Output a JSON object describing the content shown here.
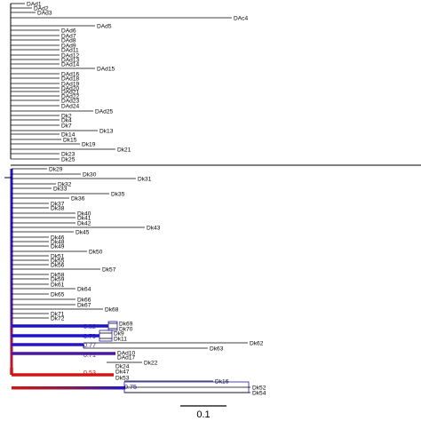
{
  "tree": {
    "line_color": "#000000",
    "gradient_colors": [
      "#1f14c8",
      "#4a1a9e",
      "#8a1a4a",
      "#d01515"
    ],
    "top_clade_tips": [
      "DAd1",
      "DAd2",
      "DAd3",
      "DAc4",
      "DAd5",
      "DAd6",
      "DAd7",
      "DAd8",
      "DAd9",
      "DAd11",
      "DAd12",
      "DAd13",
      "DAd14",
      "DAd15",
      "DAd16",
      "DAd18",
      "DAd19",
      "DAd20",
      "DAd21",
      "DAd22",
      "DAd23",
      "DAd24",
      "DAd25",
      "Dk2",
      "Dk4",
      "Dk7",
      "Dk13",
      "Dk14",
      "Dk15",
      "Dk19",
      "Dk21",
      "Dk23",
      "Dk25"
    ],
    "bottom_clade_tips": [
      "Dk29",
      "Dk30",
      "Dk31",
      "Dk32",
      "Dk33",
      "Dk35",
      "Dk36",
      "Dk37",
      "Dk38",
      "Dk40",
      "Dk41",
      "Dk42",
      "Dk43",
      "Dk45",
      "Dk46",
      "Dk48",
      "Dk49",
      "Dk50",
      "Dk51",
      "Dk55",
      "Dk56",
      "Dk57",
      "Dk58",
      "Dk59",
      "Dk61",
      "Dk64",
      "Dk65",
      "Dk66",
      "Dk67",
      "Dk68",
      "Dk71",
      "Dk72",
      "Dk69",
      "Dk70",
      "Dk9",
      "Dk11",
      "Dk62",
      "Dk63",
      "DAd10",
      "DAd17",
      "Dk22",
      "Dk24",
      "Dk47",
      "Dk53",
      "Dk16",
      "Dk52",
      "Dk54"
    ],
    "support_values": [
      {
        "value": "0.82",
        "color": "#1f14c8"
      },
      {
        "value": "0.79",
        "color": "#1f14c8"
      },
      {
        "value": "0.77",
        "color": "#2a16c0"
      },
      {
        "value": "0.71",
        "color": "#4a1a9e"
      },
      {
        "value": "0.53",
        "color": "#d01515"
      },
      {
        "value": "0.75",
        "color": "#3a18b0"
      }
    ],
    "scale_bar": {
      "label": "0.1"
    }
  }
}
